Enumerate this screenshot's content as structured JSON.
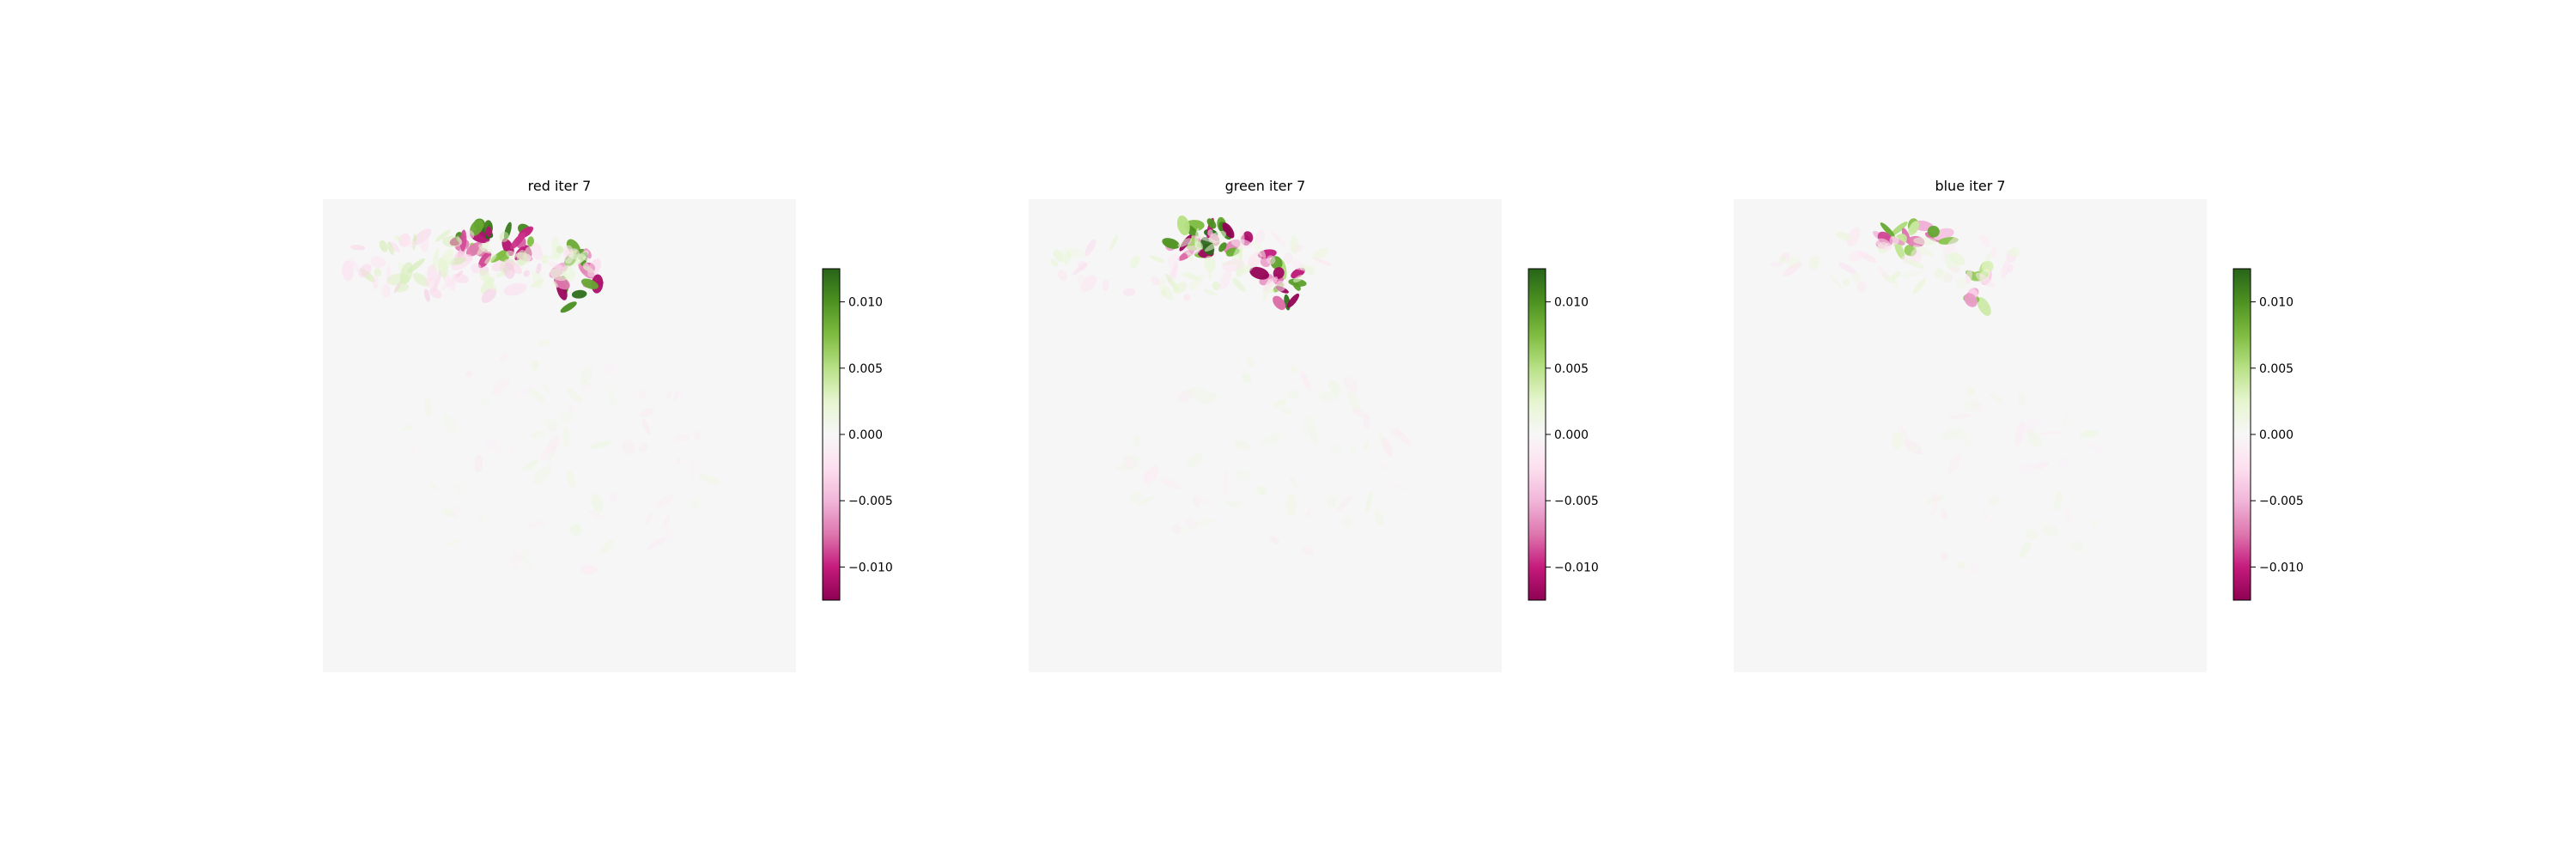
{
  "chart_data": [
    {
      "type": "heatmap",
      "title": "red iter 7",
      "colormap": "PiYG",
      "colorbar": {
        "vmin": -0.0125,
        "vmax": 0.0125,
        "ticks": [
          0.01,
          0.005,
          0.0,
          -0.005,
          -0.01
        ],
        "tick_labels": [
          "0.010",
          "0.005",
          "0.000",
          "−0.005",
          "−0.010"
        ]
      },
      "features": [
        {
          "kind": "blob_cluster",
          "cx": 0.37,
          "cy": 0.09,
          "rx": 0.09,
          "ry": 0.045,
          "count": 28,
          "amp": 0.0125
        },
        {
          "kind": "blob_cluster",
          "cx": 0.54,
          "cy": 0.17,
          "rx": 0.05,
          "ry": 0.07,
          "count": 16,
          "amp": 0.0125
        },
        {
          "kind": "diffuse",
          "cx": 0.3,
          "cy": 0.14,
          "rx": 0.28,
          "ry": 0.07,
          "count": 90,
          "amp": 0.004
        },
        {
          "kind": "diffuse",
          "cx": 0.5,
          "cy": 0.55,
          "rx": 0.35,
          "ry": 0.25,
          "count": 70,
          "amp": 0.0015
        }
      ]
    },
    {
      "type": "heatmap",
      "title": "green iter 7",
      "colormap": "PiYG",
      "colorbar": {
        "vmin": -0.0125,
        "vmax": 0.0125,
        "ticks": [
          0.01,
          0.005,
          0.0,
          -0.005,
          -0.01
        ],
        "tick_labels": [
          "0.010",
          "0.005",
          "0.000",
          "−0.005",
          "−0.010"
        ]
      },
      "features": [
        {
          "kind": "blob_cluster",
          "cx": 0.38,
          "cy": 0.085,
          "rx": 0.09,
          "ry": 0.04,
          "count": 28,
          "amp": 0.0125
        },
        {
          "kind": "blob_cluster",
          "cx": 0.53,
          "cy": 0.17,
          "rx": 0.045,
          "ry": 0.07,
          "count": 16,
          "amp": 0.0125
        },
        {
          "kind": "diffuse",
          "cx": 0.35,
          "cy": 0.14,
          "rx": 0.3,
          "ry": 0.07,
          "count": 70,
          "amp": 0.003
        },
        {
          "kind": "diffuse",
          "cx": 0.5,
          "cy": 0.55,
          "rx": 0.3,
          "ry": 0.22,
          "count": 60,
          "amp": 0.0015
        }
      ]
    },
    {
      "type": "heatmap",
      "title": "blue iter 7",
      "colormap": "PiYG",
      "colorbar": {
        "vmin": -0.0125,
        "vmax": 0.0125,
        "ticks": [
          0.01,
          0.005,
          0.0,
          -0.005,
          -0.01
        ],
        "tick_labels": [
          "0.010",
          "0.005",
          "0.000",
          "−0.005",
          "−0.010"
        ]
      },
      "features": [
        {
          "kind": "blob_cluster",
          "cx": 0.38,
          "cy": 0.09,
          "rx": 0.08,
          "ry": 0.035,
          "count": 18,
          "amp": 0.009
        },
        {
          "kind": "blob_cluster",
          "cx": 0.53,
          "cy": 0.18,
          "rx": 0.04,
          "ry": 0.05,
          "count": 10,
          "amp": 0.008
        },
        {
          "kind": "diffuse",
          "cx": 0.35,
          "cy": 0.13,
          "rx": 0.28,
          "ry": 0.06,
          "count": 50,
          "amp": 0.0025
        },
        {
          "kind": "diffuse",
          "cx": 0.55,
          "cy": 0.6,
          "rx": 0.25,
          "ry": 0.2,
          "count": 40,
          "amp": 0.0015
        }
      ]
    }
  ]
}
